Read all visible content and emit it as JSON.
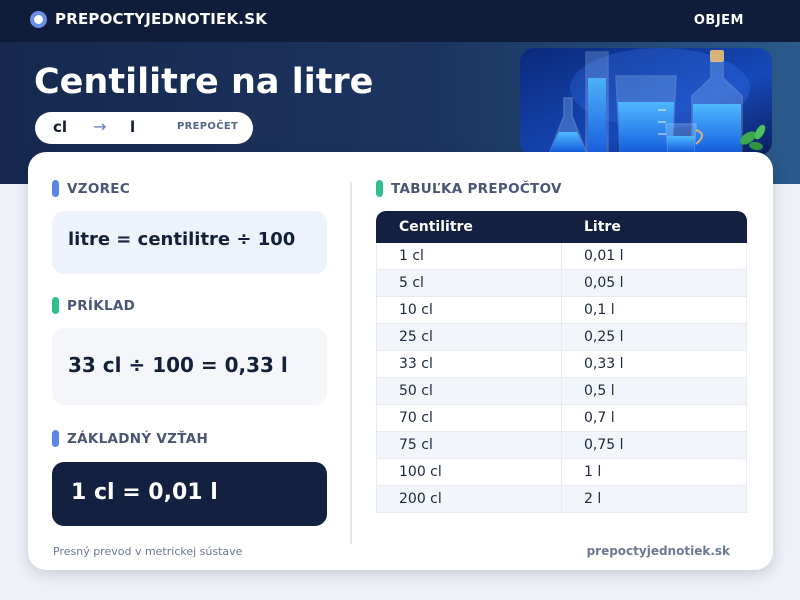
{
  "header": {
    "brand": "PREPOCTYJEDNOTIEK.SK",
    "nav_item": "OBJEM"
  },
  "hero": {
    "title": "Centilitre na litre",
    "pill": {
      "from": "cl",
      "arrow": "→",
      "to": "l",
      "label": "PREPOČET"
    }
  },
  "sections": {
    "formula": {
      "title": "VZOREC",
      "text": "litre = centilitre ÷ 100",
      "accent": "#5b86e5"
    },
    "example": {
      "title": "PRÍKLAD",
      "text": "33 cl ÷ 100 = 0,33 l",
      "accent": "#2fbf8f"
    },
    "relation": {
      "title": "ZÁKLADNÝ VZŤAH",
      "text": "1 cl = 0,01 l",
      "accent": "#5b86e5"
    },
    "table": {
      "title": "TABUĽKA PREPOČTOV",
      "accent": "#2fbf8f"
    }
  },
  "table": {
    "headers": [
      "Centilitre",
      "Litre"
    ],
    "rows": [
      [
        "1 cl",
        "0,01 l"
      ],
      [
        "5 cl",
        "0,05 l"
      ],
      [
        "10 cl",
        "0,1 l"
      ],
      [
        "25 cl",
        "0,25 l"
      ],
      [
        "33 cl",
        "0,33 l"
      ],
      [
        "50 cl",
        "0,5 l"
      ],
      [
        "70 cl",
        "0,7 l"
      ],
      [
        "75 cl",
        "0,75 l"
      ],
      [
        "100 cl",
        "1 l"
      ],
      [
        "200 cl",
        "2 l"
      ]
    ]
  },
  "footer": {
    "left": "Presný prevod v metrickej sústave",
    "right": "prepoctyjednotiek.sk"
  }
}
